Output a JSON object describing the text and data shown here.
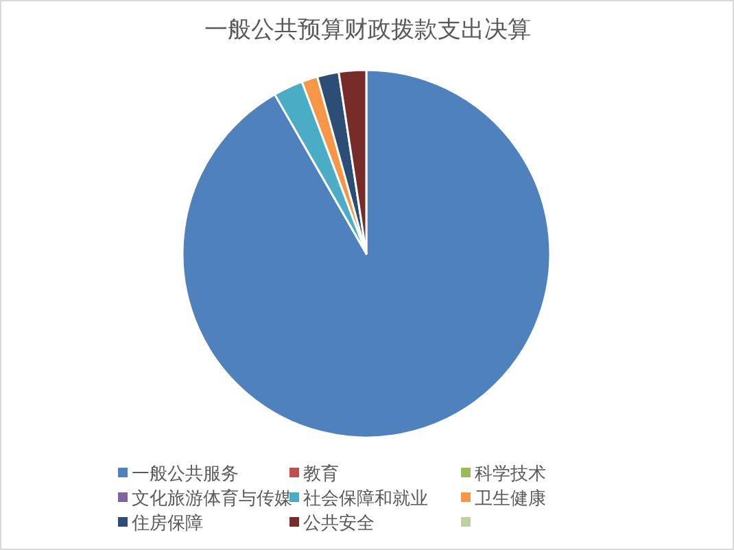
{
  "chart_data": {
    "type": "pie",
    "title": "一般公共预算财政拨款支出决算",
    "categories": [
      "一般公共服务",
      "教育",
      "科学技术",
      "文化旅游体育与传媒",
      "社会保障和就业",
      "卫生健康",
      "住房保障",
      "公共安全",
      null
    ],
    "values": [
      91.7,
      0,
      0,
      0,
      2.6,
      1.4,
      1.9,
      2.4,
      0
    ],
    "colors": [
      "#4f81bd",
      "#c0504d",
      "#9bbb59",
      "#8064a2",
      "#4bacc6",
      "#f79646",
      "#2c4d75",
      "#772c2a",
      "#bcd39f"
    ],
    "legend": "bottom"
  }
}
